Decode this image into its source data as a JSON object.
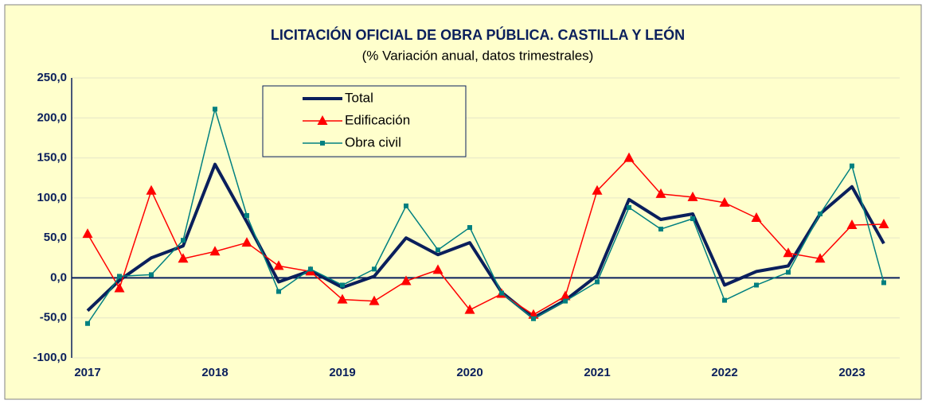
{
  "chart_data": {
    "type": "line",
    "title": "LICITACIÓN OFICIAL DE OBRA PÚBLICA. CASTILLA Y LEÓN",
    "subtitle": "(% Variación anual, datos trimestrales)",
    "categories": [
      "2017",
      null,
      null,
      null,
      "2018",
      null,
      null,
      null,
      "2019",
      null,
      null,
      null,
      "2020",
      null,
      null,
      null,
      "2021",
      null,
      null,
      null,
      "2022",
      null,
      null,
      null,
      "2023",
      null
    ],
    "series": [
      {
        "name": "Total",
        "color": "#0a1f5c",
        "width": 4,
        "values": [
          -41,
          -3,
          25,
          40,
          142,
          70,
          -5,
          9,
          -12,
          2,
          50,
          29,
          44,
          -18,
          -50,
          -28,
          3,
          98,
          73,
          80,
          -9,
          8,
          15,
          80,
          114,
          43
        ]
      },
      {
        "name": "Edificación",
        "color": "#ff0000",
        "width": 1.5,
        "marker": "triangle",
        "values": [
          55,
          -13,
          109,
          24,
          33,
          44,
          15,
          8,
          -27,
          -29,
          -4,
          10,
          -40,
          -20,
          -46,
          -23,
          109,
          150,
          105,
          101,
          94,
          75,
          31,
          24,
          66,
          67
        ]
      },
      {
        "name": "Obra civil",
        "color": "#008080",
        "width": 1.5,
        "marker": "square",
        "values": [
          -57,
          2,
          4,
          47,
          211,
          78,
          -17,
          11,
          -9,
          11,
          90,
          35,
          63,
          -19,
          -51,
          -29,
          -5,
          88,
          61,
          74,
          -28,
          -9,
          7,
          80,
          140,
          -6
        ]
      }
    ],
    "ylim": [
      -100,
      250
    ],
    "yticks": [
      {
        "value": -100,
        "label": "-100,0"
      },
      {
        "value": -50,
        "label": "-50,0"
      },
      {
        "value": 0,
        "label": "0,0"
      },
      {
        "value": 50,
        "label": "50,0"
      },
      {
        "value": 100,
        "label": "100,0"
      },
      {
        "value": 150,
        "label": "150,0"
      },
      {
        "value": 200,
        "label": "200,0"
      },
      {
        "value": 250,
        "label": "250,0"
      }
    ],
    "grid": true
  }
}
